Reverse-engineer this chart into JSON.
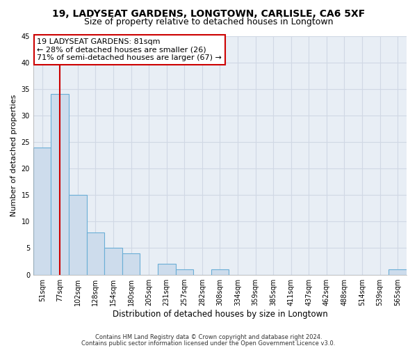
{
  "title1": "19, LADYSEAT GARDENS, LONGTOWN, CARLISLE, CA6 5XF",
  "title2": "Size of property relative to detached houses in Longtown",
  "xlabel": "Distribution of detached houses by size in Longtown",
  "ylabel": "Number of detached properties",
  "footnote1": "Contains HM Land Registry data © Crown copyright and database right 2024.",
  "footnote2": "Contains public sector information licensed under the Open Government Licence v3.0.",
  "bins": [
    "51sqm",
    "77sqm",
    "102sqm",
    "128sqm",
    "154sqm",
    "180sqm",
    "205sqm",
    "231sqm",
    "257sqm",
    "282sqm",
    "308sqm",
    "334sqm",
    "359sqm",
    "385sqm",
    "411sqm",
    "437sqm",
    "462sqm",
    "488sqm",
    "514sqm",
    "539sqm",
    "565sqm"
  ],
  "values": [
    24,
    34,
    15,
    8,
    5,
    4,
    0,
    2,
    1,
    0,
    1,
    0,
    0,
    0,
    0,
    0,
    0,
    0,
    0,
    0,
    1
  ],
  "bar_color": "#cddcec",
  "bar_edge_color": "#6aaed6",
  "red_line_x": 1.0,
  "annotation_line1": "19 LADYSEAT GARDENS: 81sqm",
  "annotation_line2": "← 28% of detached houses are smaller (26)",
  "annotation_line3": "71% of semi-detached houses are larger (67) →",
  "annotation_box_color": "#ffffff",
  "annotation_box_edge_color": "#cc0000",
  "red_line_color": "#cc0000",
  "ylim": [
    0,
    45
  ],
  "yticks": [
    0,
    5,
    10,
    15,
    20,
    25,
    30,
    35,
    40,
    45
  ],
  "grid_color": "#d0d8e4",
  "plot_bg_color": "#e8eef5",
  "background_color": "#ffffff",
  "title1_fontsize": 10,
  "title2_fontsize": 9,
  "xlabel_fontsize": 8.5,
  "ylabel_fontsize": 8,
  "tick_fontsize": 7,
  "annotation_fontsize": 8,
  "footnote_fontsize": 6
}
